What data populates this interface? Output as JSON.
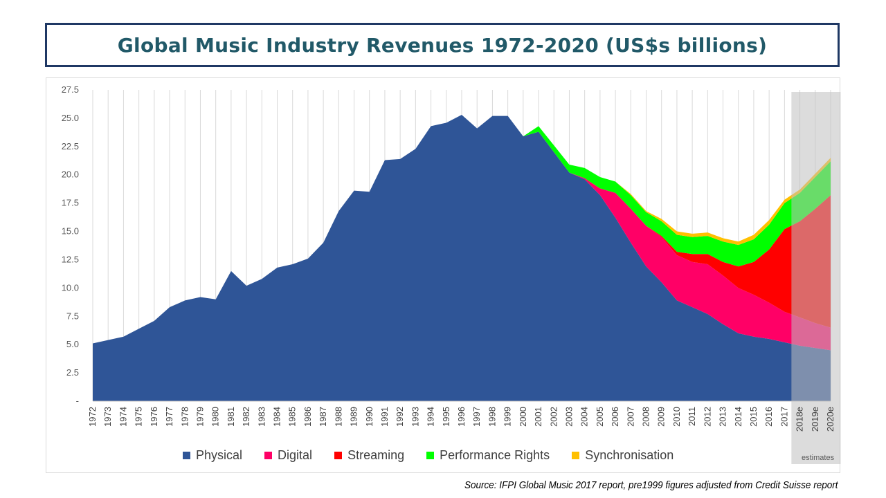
{
  "title": "Global Music Industry Revenues 1972-2020 (US$s billions)",
  "source": "Source: IFPI Global Music 2017 report, pre1999 figures adjusted from Credit Suisse report",
  "chart_data": {
    "type": "area",
    "stacked": true,
    "categories": [
      "1972",
      "1973",
      "1974",
      "1975",
      "1976",
      "1977",
      "1978",
      "1979",
      "1980",
      "1981",
      "1982",
      "1983",
      "1984",
      "1985",
      "1986",
      "1987",
      "1988",
      "1989",
      "1990",
      "1991",
      "1992",
      "1993",
      "1994",
      "1995",
      "1996",
      "1997",
      "1998",
      "1999",
      "2000",
      "2001",
      "2002",
      "2003",
      "2004",
      "2005",
      "2006",
      "2007",
      "2008",
      "2009",
      "2010",
      "2011",
      "2012",
      "2013",
      "2014",
      "2015",
      "2016",
      "2017",
      "2018e",
      "2019e",
      "2020e"
    ],
    "y_tick_labels": [
      "-",
      "2.5",
      "5.0",
      "7.5",
      "10.0",
      "12.5",
      "15.0",
      "17.5",
      "20.0",
      "22.5",
      "25.0",
      "27.5"
    ],
    "ylim": [
      0,
      27.5
    ],
    "grid": "vertical",
    "legend_position": "bottom",
    "series": [
      {
        "name": "Physical",
        "color": "#2f5597",
        "values": [
          5.1,
          5.4,
          5.7,
          6.4,
          7.1,
          8.3,
          8.9,
          9.2,
          9.0,
          11.5,
          10.2,
          10.8,
          11.8,
          12.1,
          12.6,
          14.0,
          16.8,
          18.6,
          18.5,
          21.3,
          21.4,
          22.3,
          24.3,
          24.6,
          25.3,
          24.1,
          25.2,
          25.2,
          23.4,
          23.8,
          22.0,
          20.2,
          19.6,
          18.2,
          16.2,
          14.0,
          11.9,
          10.5,
          8.9,
          8.3,
          7.7,
          6.8,
          6.0,
          5.7,
          5.5,
          5.2,
          4.9,
          4.7,
          4.5
        ]
      },
      {
        "name": "Digital",
        "color": "#ff0066",
        "values": [
          0,
          0,
          0,
          0,
          0,
          0,
          0,
          0,
          0,
          0,
          0,
          0,
          0,
          0,
          0,
          0,
          0,
          0,
          0,
          0,
          0,
          0,
          0,
          0,
          0,
          0,
          0,
          0,
          0,
          0,
          0,
          0,
          0.1,
          0.6,
          2.2,
          3.0,
          3.6,
          4.0,
          4.0,
          4.0,
          4.4,
          4.3,
          4.0,
          3.7,
          3.2,
          2.7,
          2.5,
          2.2,
          2.0
        ]
      },
      {
        "name": "Streaming",
        "color": "#ff0000",
        "values": [
          0,
          0,
          0,
          0,
          0,
          0,
          0,
          0,
          0,
          0,
          0,
          0,
          0,
          0,
          0,
          0,
          0,
          0,
          0,
          0,
          0,
          0,
          0,
          0,
          0,
          0,
          0,
          0,
          0,
          0,
          0,
          0,
          0,
          0,
          0,
          0,
          0,
          0.1,
          0.3,
          0.7,
          0.9,
          1.2,
          1.9,
          2.9,
          4.7,
          7.3,
          8.5,
          10.1,
          11.7
        ]
      },
      {
        "name": "Performance Rights",
        "color": "#00ff00",
        "values": [
          0,
          0,
          0,
          0,
          0,
          0,
          0,
          0,
          0,
          0,
          0,
          0,
          0,
          0,
          0,
          0,
          0,
          0,
          0,
          0,
          0,
          0,
          0,
          0,
          0,
          0,
          0,
          0,
          0,
          0.5,
          0.6,
          0.7,
          0.9,
          1.0,
          1.0,
          1.2,
          1.2,
          1.3,
          1.5,
          1.5,
          1.6,
          1.8,
          1.9,
          2.0,
          2.2,
          2.3,
          2.5,
          2.8,
          3.0
        ]
      },
      {
        "name": "Synchronisation",
        "color": "#ffc000",
        "values": [
          0,
          0,
          0,
          0,
          0,
          0,
          0,
          0,
          0,
          0,
          0,
          0,
          0,
          0,
          0,
          0,
          0,
          0,
          0,
          0,
          0,
          0,
          0,
          0,
          0,
          0,
          0,
          0,
          0,
          0,
          0,
          0,
          0,
          0,
          0,
          0.1,
          0.1,
          0.2,
          0.3,
          0.3,
          0.3,
          0.3,
          0.3,
          0.4,
          0.4,
          0.3,
          0.3,
          0.3,
          0.3
        ]
      }
    ],
    "estimates_label": "estimates",
    "estimates_range": [
      "2018e",
      "2020e"
    ]
  }
}
